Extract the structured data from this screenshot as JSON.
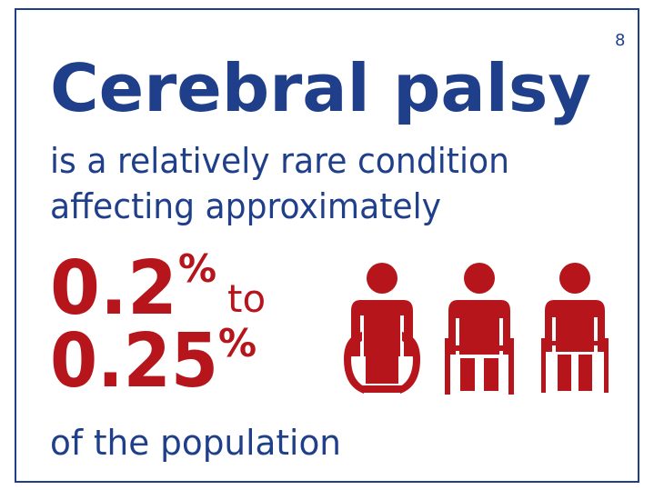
{
  "footnote": "8",
  "title": "Cerebral palsy",
  "subtitle": {
    "line1": "is a relatively rare condition",
    "line2": "affecting approximately"
  },
  "stat": {
    "low": "0.2",
    "low_unit": "%",
    "connector": "to",
    "high": "0.25",
    "high_unit": "%"
  },
  "footer": "of the population"
}
